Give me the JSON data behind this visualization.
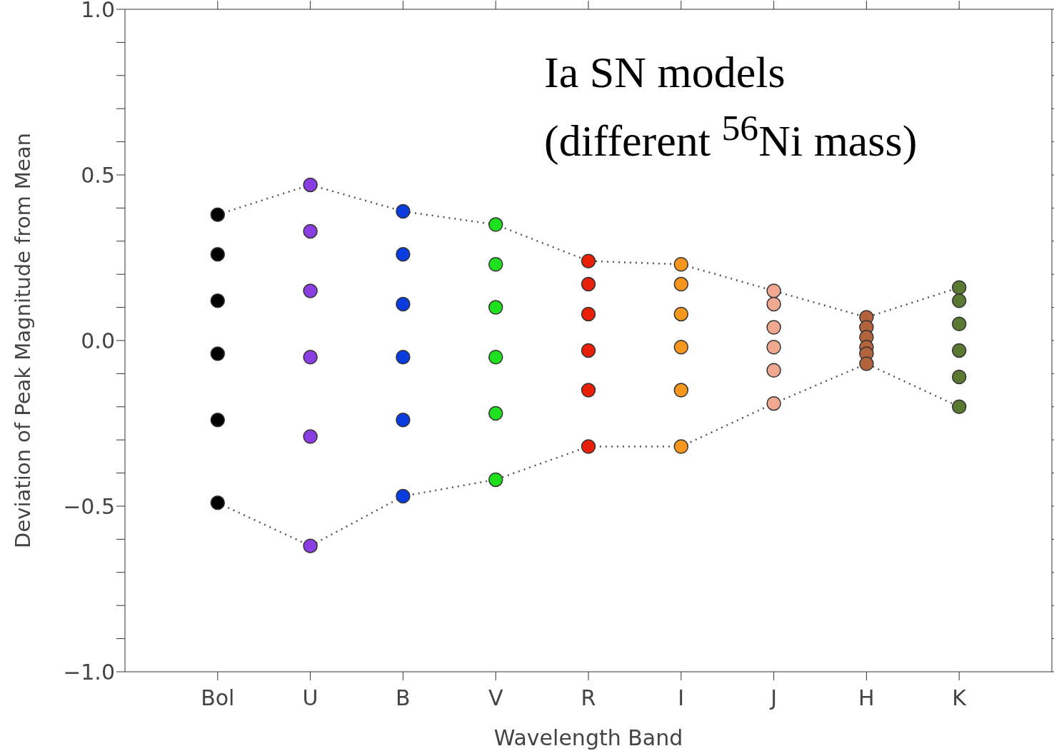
{
  "chart_data": {
    "type": "scatter",
    "xlabel": "Wavelength Band",
    "ylabel": "Deviation of Peak Magnitude from Mean",
    "annotations": [
      "Ia SN models",
      "(different $^{56}$Ni mass)"
    ],
    "categories": [
      "Bol",
      "U",
      "B",
      "V",
      "R",
      "I",
      "J",
      "H",
      "K"
    ],
    "ylim": [
      -1.0,
      1.0
    ],
    "yticks": [
      {
        "value": -1.0,
        "label": "−1.0"
      },
      {
        "value": -0.9,
        "label": null
      },
      {
        "value": -0.8,
        "label": null
      },
      {
        "value": -0.7,
        "label": null
      },
      {
        "value": -0.6,
        "label": null
      },
      {
        "value": -0.5,
        "label": "−0.5"
      },
      {
        "value": -0.4,
        "label": null
      },
      {
        "value": -0.3,
        "label": null
      },
      {
        "value": -0.2,
        "label": null
      },
      {
        "value": -0.1,
        "label": null
      },
      {
        "value": 0.0,
        "label": "0.0"
      },
      {
        "value": 0.1,
        "label": null
      },
      {
        "value": 0.2,
        "label": null
      },
      {
        "value": 0.3,
        "label": null
      },
      {
        "value": 0.4,
        "label": null
      },
      {
        "value": 0.5,
        "label": "0.5"
      },
      {
        "value": 0.6,
        "label": null
      },
      {
        "value": 0.7,
        "label": null
      },
      {
        "value": 0.8,
        "label": null
      },
      {
        "value": 0.9,
        "label": null
      },
      {
        "value": 1.0,
        "label": "1.0"
      }
    ],
    "grid": false,
    "marker": "circle",
    "series": [
      {
        "type": "line",
        "color": "#555555",
        "line_style": "dotted",
        "marker": "none",
        "x": [
          "Bol",
          "U",
          "B",
          "V",
          "R",
          "I",
          "J",
          "H",
          "K"
        ],
        "values": [
          0.38,
          0.47,
          0.39,
          0.35,
          0.24,
          0.23,
          0.15,
          0.07,
          0.16
        ]
      },
      {
        "type": "line",
        "color": "#555555",
        "line_style": "dotted",
        "marker": "none",
        "x": [
          "Bol",
          "U",
          "B",
          "V",
          "R",
          "I",
          "J",
          "H",
          "K"
        ],
        "values": [
          -0.49,
          -0.62,
          -0.47,
          -0.42,
          -0.32,
          -0.32,
          -0.19,
          -0.07,
          -0.2
        ]
      },
      {
        "color": "#000000",
        "x": [
          "Bol",
          "Bol",
          "Bol",
          "Bol",
          "Bol",
          "Bol"
        ],
        "values": [
          0.38,
          0.26,
          0.12,
          -0.04,
          -0.24,
          -0.49
        ]
      },
      {
        "color": "#8a3de0",
        "x": [
          "U",
          "U",
          "U",
          "U",
          "U",
          "U"
        ],
        "values": [
          0.47,
          0.33,
          0.15,
          -0.05,
          -0.29,
          -0.62
        ]
      },
      {
        "color": "#0a3ce0",
        "x": [
          "B",
          "B",
          "B",
          "B",
          "B",
          "B"
        ],
        "values": [
          0.39,
          0.26,
          0.11,
          -0.05,
          -0.24,
          -0.47
        ]
      },
      {
        "color": "#1ee01e",
        "x": [
          "V",
          "V",
          "V",
          "V",
          "V",
          "V"
        ],
        "values": [
          0.35,
          0.23,
          0.1,
          -0.05,
          -0.22,
          -0.42
        ]
      },
      {
        "color": "#e8200a",
        "x": [
          "R",
          "R",
          "R",
          "R",
          "R",
          "R"
        ],
        "values": [
          0.24,
          0.17,
          0.08,
          -0.03,
          -0.15,
          -0.32
        ]
      },
      {
        "color": "#f5961e",
        "x": [
          "I",
          "I",
          "I",
          "I",
          "I",
          "I"
        ],
        "values": [
          0.23,
          0.17,
          0.08,
          -0.02,
          -0.15,
          -0.32
        ]
      },
      {
        "color": "#f0a890",
        "x": [
          "J",
          "J",
          "J",
          "J",
          "J",
          "J"
        ],
        "values": [
          0.15,
          0.11,
          0.04,
          -0.02,
          -0.09,
          -0.19
        ]
      },
      {
        "color": "#b4643c",
        "x": [
          "H",
          "H",
          "H",
          "H",
          "H",
          "H"
        ],
        "values": [
          0.07,
          0.04,
          0.01,
          -0.02,
          -0.04,
          -0.07
        ]
      },
      {
        "color": "#5a7832",
        "x": [
          "K",
          "K",
          "K",
          "K",
          "K",
          "K"
        ],
        "values": [
          0.16,
          0.12,
          0.05,
          -0.03,
          -0.11,
          -0.2
        ]
      }
    ]
  }
}
